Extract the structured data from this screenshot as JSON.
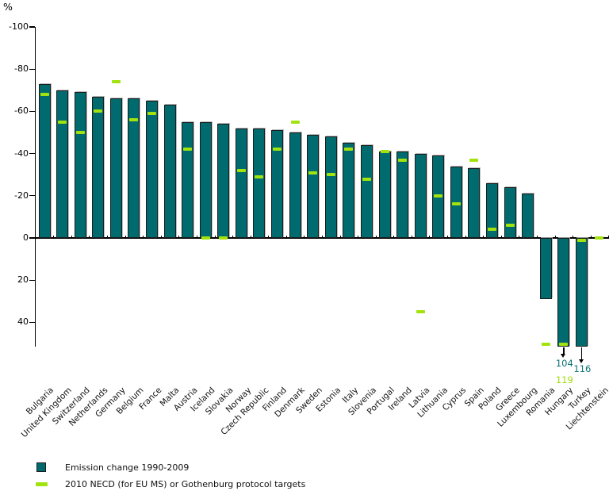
{
  "colors": {
    "bar_fill": "#006b6e",
    "bar_border": "#1c1c1c",
    "target_marker": "#a2e30f",
    "annotation_value_text": "#0d7276",
    "annotation_target_text": "#9fd90f",
    "axis": "#000000",
    "label_text": "#111111"
  },
  "legend": [
    {
      "swatch": "bar",
      "label": "Emission change 1990-2009"
    },
    {
      "swatch": "target-dash",
      "label": "2010 NECD (for EU MS) or Gothenburg protocol targets"
    }
  ],
  "chart_data": {
    "type": "bar",
    "title": "",
    "unit_label": "%",
    "ylabel": "%",
    "xlabel": "",
    "axis_inverted": true,
    "yticks": [
      -100,
      -80,
      -60,
      -40,
      -20,
      0,
      20,
      40
    ],
    "ylim": [
      -100,
      52
    ],
    "grid": false,
    "legend_position": "bottom-left",
    "categories": [
      "Bulgaria",
      "United Kingdom",
      "Switzerland",
      "Netherlands",
      "Germany",
      "Belgium",
      "France",
      "Malta",
      "Austria",
      "Iceland",
      "Slovakia",
      "Norway",
      "Czech Republic",
      "Finland",
      "Denmark",
      "Sweden",
      "Estonia",
      "Italy",
      "Slovenia",
      "Portugal",
      "Ireland",
      "Latvia",
      "Lithuania",
      "Cyprus",
      "Spain",
      "Poland",
      "Greece",
      "Luxembourg",
      "Romania",
      "Hungary",
      "Turkey",
      "Liechtenstein"
    ],
    "series": [
      {
        "name": "Emission change 1990-2009",
        "values": [
          -73,
          -70,
          -69,
          -67,
          -66,
          -66,
          -65,
          -63,
          -55,
          -55,
          -54,
          -52,
          -52,
          -51,
          -50,
          -49,
          -48,
          -45,
          -44,
          -41,
          -41,
          -40,
          -39,
          -34,
          -33,
          -26,
          -24,
          -21,
          29,
          104,
          116,
          0
        ]
      },
      {
        "name": "2010 NECD (for EU MS) or Gothenburg protocol targets",
        "values": [
          -68,
          -55,
          -50,
          -60,
          -74,
          -56,
          -59,
          null,
          -42,
          0,
          0,
          -32,
          -29,
          -42,
          -55,
          -31,
          -30,
          -42,
          -28,
          -41,
          -37,
          35,
          -20,
          -16,
          -37,
          -4,
          -6,
          null,
          51,
          119,
          1,
          0
        ]
      }
    ],
    "offscale_annotations": [
      {
        "category": "Hungary",
        "value_label": "104",
        "target_label": "119"
      },
      {
        "category": "Turkey",
        "value_label": "116",
        "target_label": null
      }
    ]
  }
}
